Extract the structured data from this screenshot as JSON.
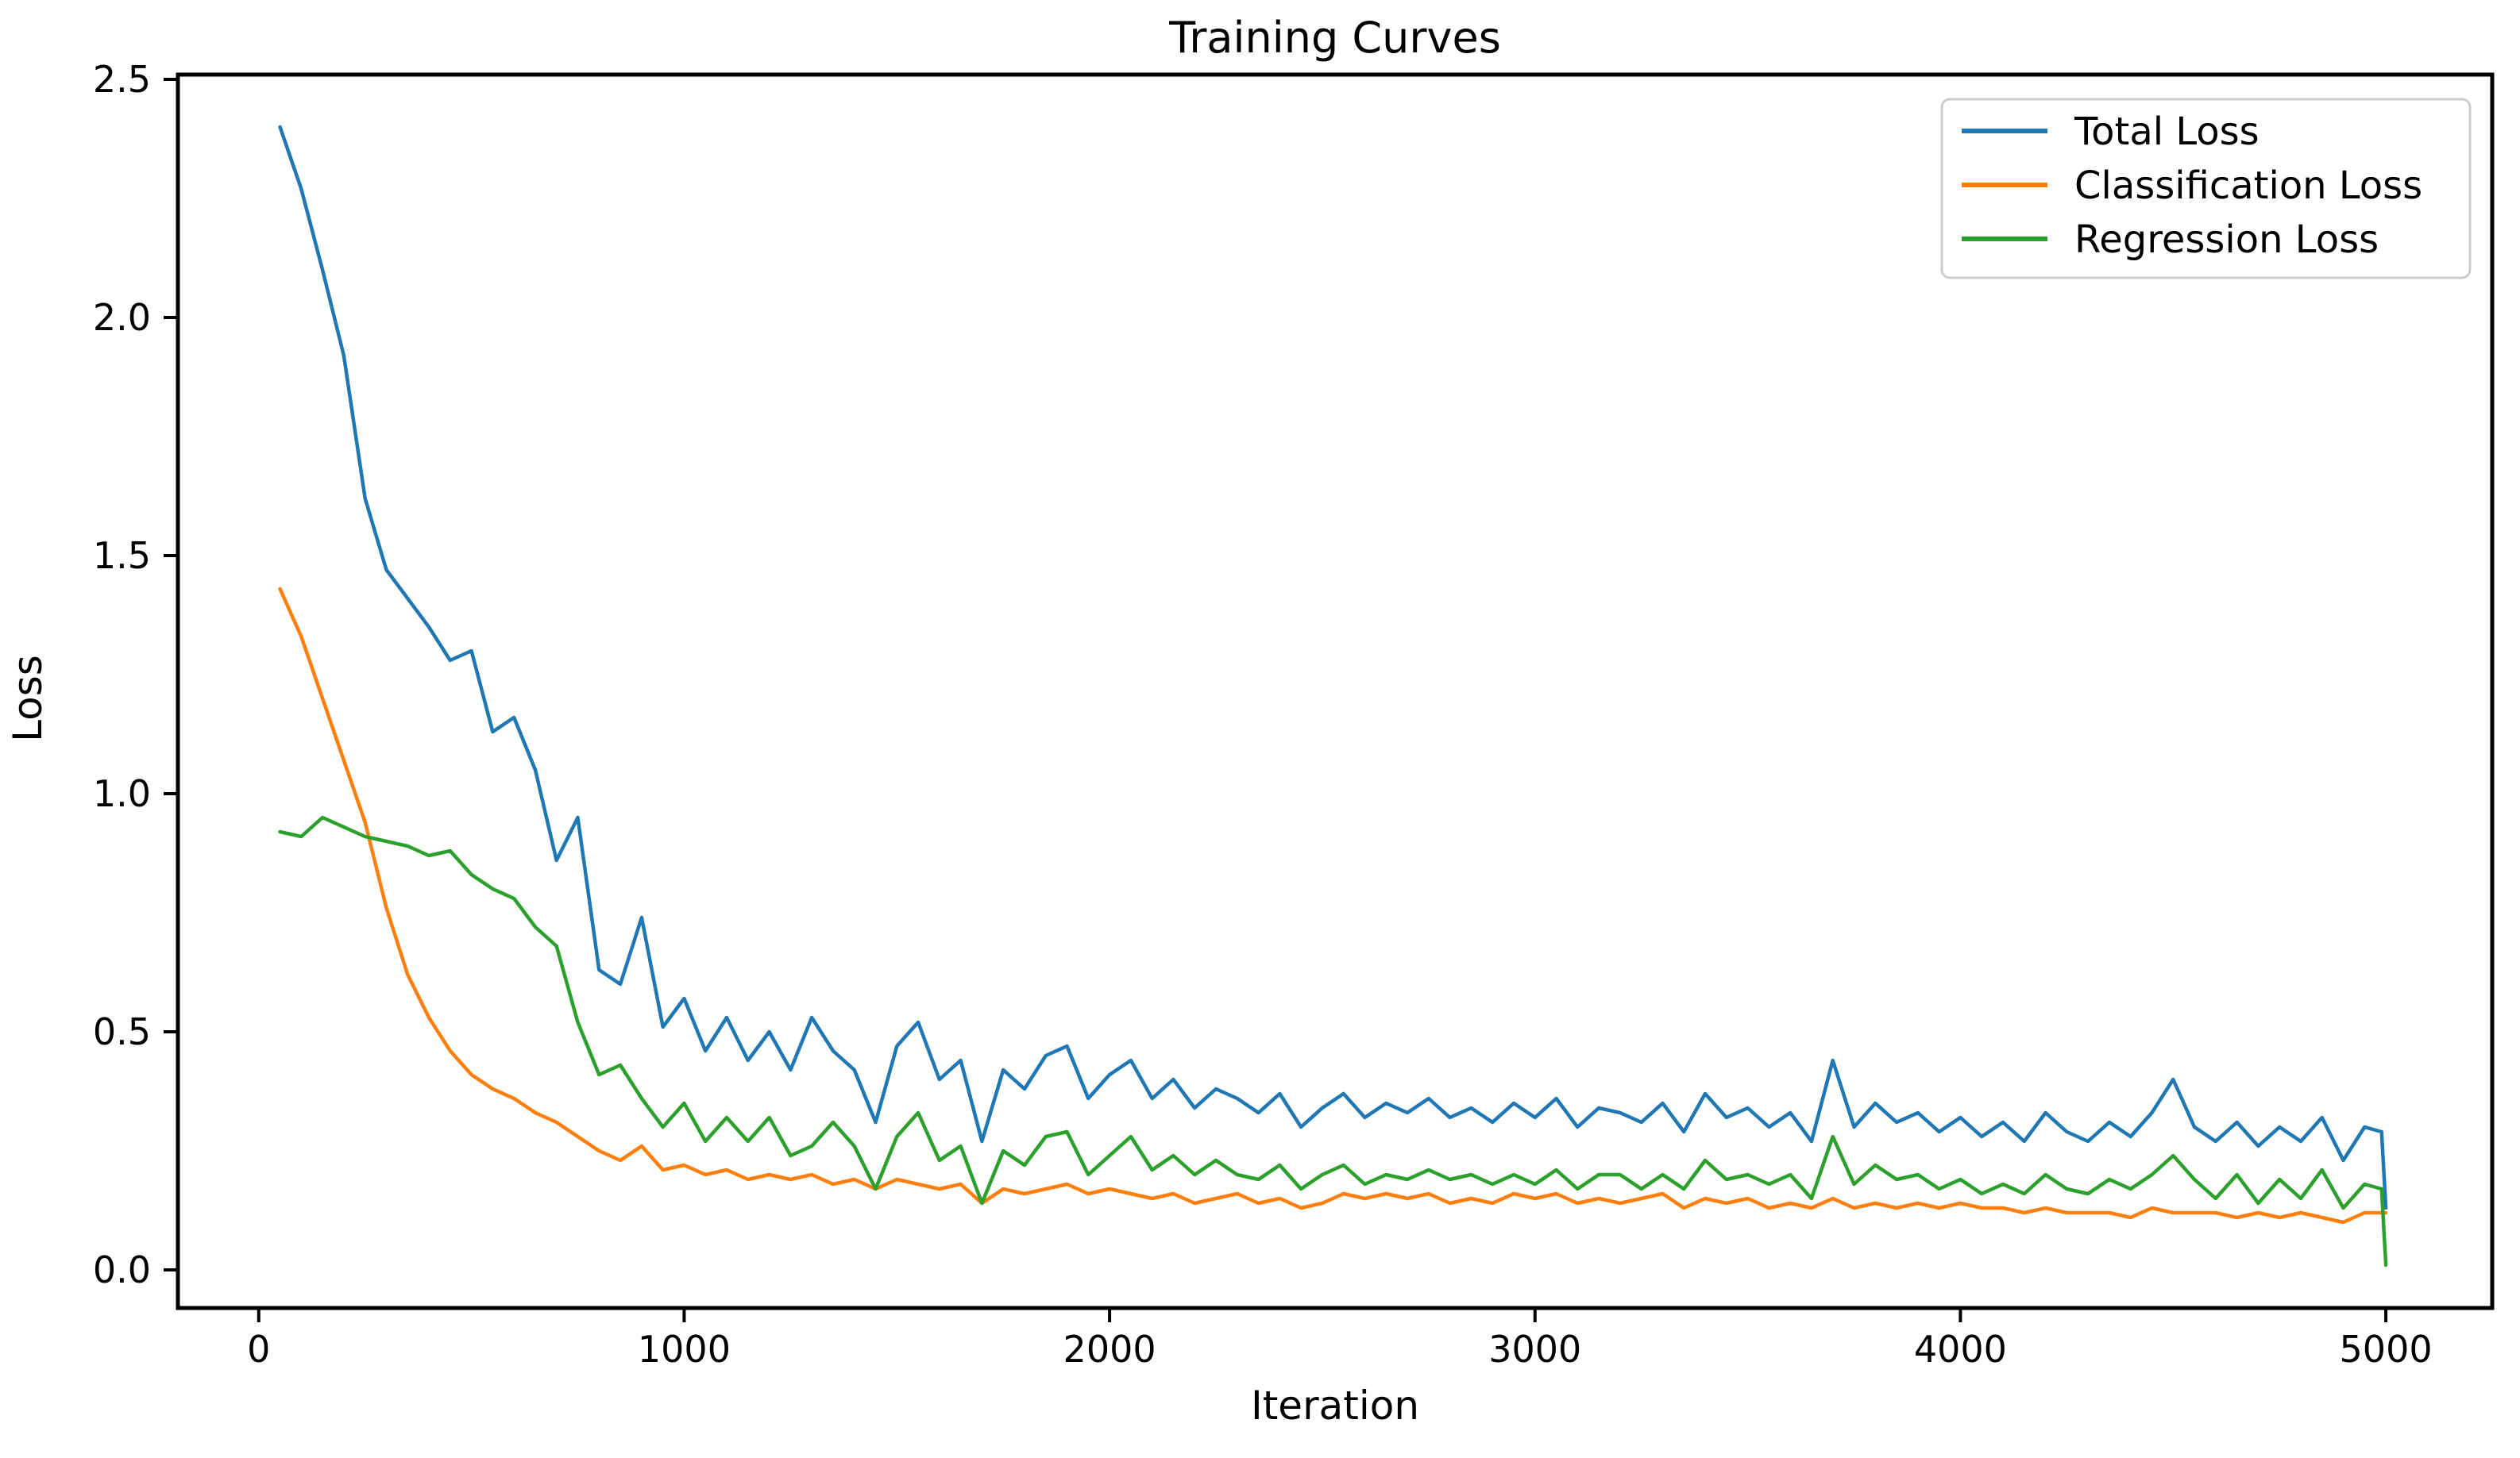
{
  "chart_data": {
    "type": "line",
    "title": "Training Curves",
    "xlabel": "Iteration",
    "ylabel": "Loss",
    "xlim": [
      -190,
      5250
    ],
    "ylim": [
      -0.08,
      2.51
    ],
    "x_ticks": [
      0,
      1000,
      2000,
      3000,
      4000,
      5000
    ],
    "y_ticks": [
      0.0,
      0.5,
      1.0,
      1.5,
      2.0,
      2.5
    ],
    "grid": false,
    "legend_position": "upper right",
    "legend_border_color": "#cccccc",
    "axes_color": "#000000",
    "background_color": "#ffffff",
    "x": [
      50,
      100,
      150,
      200,
      250,
      300,
      350,
      400,
      450,
      500,
      550,
      600,
      650,
      700,
      750,
      800,
      850,
      900,
      950,
      1000,
      1050,
      1100,
      1150,
      1200,
      1250,
      1300,
      1350,
      1400,
      1450,
      1500,
      1550,
      1600,
      1650,
      1700,
      1750,
      1800,
      1850,
      1900,
      1950,
      2000,
      2050,
      2100,
      2150,
      2200,
      2250,
      2300,
      2350,
      2400,
      2450,
      2500,
      2550,
      2600,
      2650,
      2700,
      2750,
      2800,
      2850,
      2900,
      2950,
      3000,
      3050,
      3100,
      3150,
      3200,
      3250,
      3300,
      3350,
      3400,
      3450,
      3500,
      3550,
      3600,
      3650,
      3700,
      3750,
      3800,
      3850,
      3900,
      3950,
      4000,
      4050,
      4100,
      4150,
      4200,
      4250,
      4300,
      4350,
      4400,
      4450,
      4500,
      4550,
      4600,
      4650,
      4700,
      4750,
      4800,
      4850,
      4900,
      4950,
      4990,
      5000
    ],
    "series": [
      {
        "name": "Total Loss",
        "color": "#1f77b4",
        "values": [
          2.4,
          2.27,
          2.1,
          1.92,
          1.62,
          1.47,
          1.41,
          1.35,
          1.28,
          1.3,
          1.13,
          1.16,
          1.05,
          0.86,
          0.95,
          0.63,
          0.6,
          0.74,
          0.51,
          0.57,
          0.46,
          0.53,
          0.44,
          0.5,
          0.42,
          0.53,
          0.46,
          0.42,
          0.31,
          0.47,
          0.52,
          0.4,
          0.44,
          0.27,
          0.42,
          0.38,
          0.45,
          0.47,
          0.36,
          0.41,
          0.44,
          0.36,
          0.4,
          0.34,
          0.38,
          0.36,
          0.33,
          0.37,
          0.3,
          0.34,
          0.37,
          0.32,
          0.35,
          0.33,
          0.36,
          0.32,
          0.34,
          0.31,
          0.35,
          0.32,
          0.36,
          0.3,
          0.34,
          0.33,
          0.31,
          0.35,
          0.29,
          0.37,
          0.32,
          0.34,
          0.3,
          0.33,
          0.27,
          0.44,
          0.3,
          0.35,
          0.31,
          0.33,
          0.29,
          0.32,
          0.28,
          0.31,
          0.27,
          0.33,
          0.29,
          0.27,
          0.31,
          0.28,
          0.33,
          0.4,
          0.3,
          0.27,
          0.31,
          0.26,
          0.3,
          0.27,
          0.32,
          0.23,
          0.3,
          0.29,
          0.13
        ]
      },
      {
        "name": "Classification Loss",
        "color": "#ff7f0e",
        "values": [
          1.43,
          1.33,
          1.2,
          1.07,
          0.94,
          0.76,
          0.62,
          0.53,
          0.46,
          0.41,
          0.38,
          0.36,
          0.33,
          0.31,
          0.28,
          0.25,
          0.23,
          0.26,
          0.21,
          0.22,
          0.2,
          0.21,
          0.19,
          0.2,
          0.19,
          0.2,
          0.18,
          0.19,
          0.17,
          0.19,
          0.18,
          0.17,
          0.18,
          0.14,
          0.17,
          0.16,
          0.17,
          0.18,
          0.16,
          0.17,
          0.16,
          0.15,
          0.16,
          0.14,
          0.15,
          0.16,
          0.14,
          0.15,
          0.13,
          0.14,
          0.16,
          0.15,
          0.16,
          0.15,
          0.16,
          0.14,
          0.15,
          0.14,
          0.16,
          0.15,
          0.16,
          0.14,
          0.15,
          0.14,
          0.15,
          0.16,
          0.13,
          0.15,
          0.14,
          0.15,
          0.13,
          0.14,
          0.13,
          0.15,
          0.13,
          0.14,
          0.13,
          0.14,
          0.13,
          0.14,
          0.13,
          0.13,
          0.12,
          0.13,
          0.12,
          0.12,
          0.12,
          0.11,
          0.13,
          0.12,
          0.12,
          0.12,
          0.11,
          0.12,
          0.11,
          0.12,
          0.11,
          0.1,
          0.12,
          0.12,
          0.12
        ]
      },
      {
        "name": "Regression Loss",
        "color": "#2ca02c",
        "values": [
          0.92,
          0.91,
          0.95,
          0.93,
          0.91,
          0.9,
          0.89,
          0.87,
          0.88,
          0.83,
          0.8,
          0.78,
          0.72,
          0.68,
          0.52,
          0.41,
          0.43,
          0.36,
          0.3,
          0.35,
          0.27,
          0.32,
          0.27,
          0.32,
          0.24,
          0.26,
          0.31,
          0.26,
          0.17,
          0.28,
          0.33,
          0.23,
          0.26,
          0.14,
          0.25,
          0.22,
          0.28,
          0.29,
          0.2,
          0.24,
          0.28,
          0.21,
          0.24,
          0.2,
          0.23,
          0.2,
          0.19,
          0.22,
          0.17,
          0.2,
          0.22,
          0.18,
          0.2,
          0.19,
          0.21,
          0.19,
          0.2,
          0.18,
          0.2,
          0.18,
          0.21,
          0.17,
          0.2,
          0.2,
          0.17,
          0.2,
          0.17,
          0.23,
          0.19,
          0.2,
          0.18,
          0.2,
          0.15,
          0.28,
          0.18,
          0.22,
          0.19,
          0.2,
          0.17,
          0.19,
          0.16,
          0.18,
          0.16,
          0.2,
          0.17,
          0.16,
          0.19,
          0.17,
          0.2,
          0.24,
          0.19,
          0.15,
          0.2,
          0.14,
          0.19,
          0.15,
          0.21,
          0.13,
          0.18,
          0.17,
          0.01
        ]
      }
    ]
  }
}
